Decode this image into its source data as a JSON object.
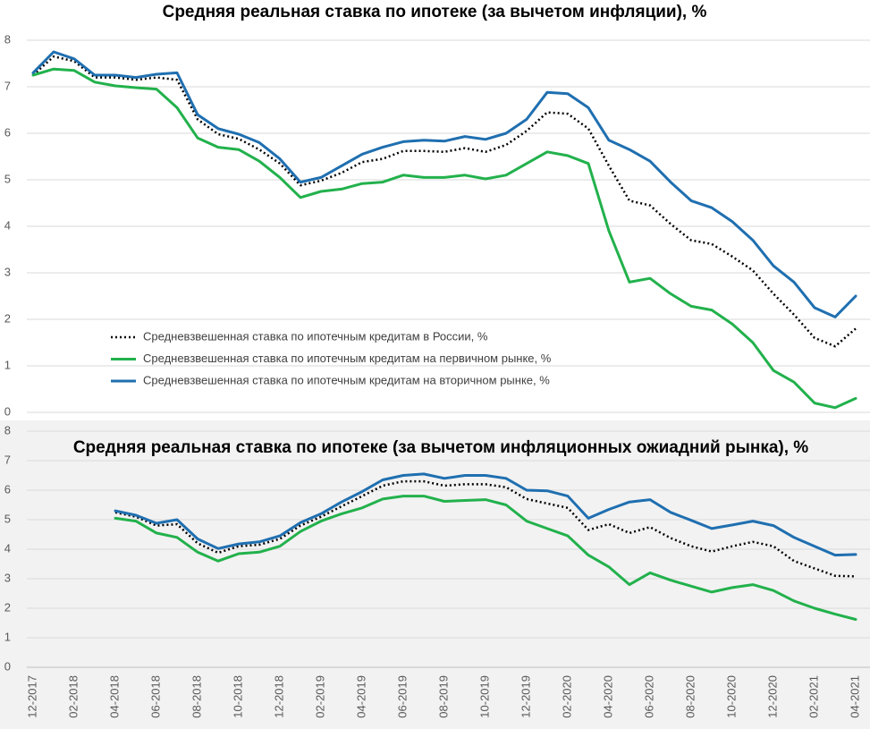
{
  "chart_data": [
    {
      "type": "line",
      "title": "Средняя реальная ставка по ипотеке (за вычетом инфляции), %",
      "ylim": [
        0,
        8
      ],
      "yticks": [
        0,
        1,
        2,
        3,
        4,
        5,
        6,
        7,
        8
      ],
      "grid": true,
      "legend": "inside-bottom-left",
      "series": [
        {
          "name": "Средневзвешенная ставка по ипотечным кредитам в России, %",
          "color": "#000000",
          "line_style": "dotted",
          "values": [
            7.25,
            7.65,
            7.55,
            7.2,
            7.2,
            7.15,
            7.2,
            7.15,
            6.3,
            5.98,
            5.88,
            5.65,
            5.35,
            4.88,
            4.98,
            5.15,
            5.38,
            5.45,
            5.62,
            5.62,
            5.6,
            5.68,
            5.6,
            5.75,
            6.05,
            6.45,
            6.42,
            6.1,
            5.3,
            4.55,
            4.45,
            4.05,
            3.7,
            3.62,
            3.35,
            3.05,
            2.55,
            2.1,
            1.6,
            1.42,
            1.8
          ]
        },
        {
          "name": "Средневзвешенная ставка по ипотечным кредитам на первичном рынке, %",
          "color": "#22b14c",
          "line_style": "solid",
          "values": [
            7.25,
            7.38,
            7.35,
            7.1,
            7.02,
            6.98,
            6.95,
            6.55,
            5.9,
            5.7,
            5.65,
            5.4,
            5.05,
            4.62,
            4.75,
            4.8,
            4.92,
            4.95,
            5.1,
            5.05,
            5.05,
            5.1,
            5.02,
            5.1,
            5.35,
            5.6,
            5.52,
            5.35,
            3.9,
            2.8,
            2.88,
            2.55,
            2.28,
            2.2,
            1.9,
            1.5,
            0.9,
            0.65,
            0.2,
            0.1,
            0.3
          ]
        },
        {
          "name": "Средневзвешенная ставка по ипотечным кредитам на вторичном рынке, %",
          "color": "#1f6fb0",
          "line_style": "solid",
          "values": [
            7.3,
            7.75,
            7.6,
            7.25,
            7.25,
            7.2,
            7.27,
            7.3,
            6.4,
            6.1,
            5.98,
            5.8,
            5.45,
            4.95,
            5.05,
            5.3,
            5.55,
            5.7,
            5.82,
            5.85,
            5.83,
            5.93,
            5.87,
            6.0,
            6.3,
            6.88,
            6.85,
            6.55,
            5.85,
            5.65,
            5.4,
            4.95,
            4.55,
            4.4,
            4.1,
            3.7,
            3.15,
            2.8,
            2.25,
            2.05,
            2.5
          ]
        }
      ]
    },
    {
      "type": "line",
      "title": "Средняя реальная ставка по ипотеке (за вычетом инфляционных ожиадний рынка), %",
      "categories": [
        "12-2017",
        null,
        "02-2018",
        null,
        "04-2018",
        null,
        "06-2018",
        null,
        "08-2018",
        null,
        "10-2018",
        null,
        "12-2018",
        null,
        "02-2019",
        null,
        "04-2019",
        null,
        "06-2019",
        null,
        "08-2019",
        null,
        "10-2019",
        null,
        "12-2019",
        null,
        "02-2020",
        null,
        "04-2020",
        null,
        "06-2020",
        null,
        "08-2020",
        null,
        "10-2020",
        null,
        "12-2020",
        null,
        "02-2021",
        null,
        "04-2021"
      ],
      "ylim": [
        0,
        8
      ],
      "yticks": [
        0,
        1,
        2,
        3,
        4,
        5,
        6,
        7,
        8
      ],
      "grid": true,
      "series": [
        {
          "color": "#000000",
          "line_style": "dotted",
          "values": [
            null,
            null,
            null,
            null,
            5.25,
            5.1,
            4.8,
            4.85,
            4.2,
            3.88,
            4.1,
            4.15,
            4.35,
            4.8,
            5.1,
            5.45,
            5.8,
            6.15,
            6.3,
            6.3,
            6.15,
            6.2,
            6.2,
            6.1,
            5.7,
            5.55,
            5.4,
            4.65,
            4.85,
            4.55,
            4.75,
            4.38,
            4.1,
            3.92,
            4.1,
            4.25,
            4.1,
            3.6,
            3.35,
            3.1,
            3.08
          ]
        },
        {
          "color": "#22b14c",
          "line_style": "solid",
          "values": [
            null,
            null,
            null,
            null,
            5.05,
            4.95,
            4.55,
            4.4,
            3.9,
            3.6,
            3.85,
            3.9,
            4.1,
            4.6,
            4.95,
            5.2,
            5.4,
            5.7,
            5.8,
            5.8,
            5.62,
            5.65,
            5.68,
            5.5,
            4.95,
            4.7,
            4.45,
            3.8,
            3.4,
            2.8,
            3.2,
            2.95,
            2.75,
            2.55,
            2.7,
            2.8,
            2.6,
            2.25,
            2.0,
            1.8,
            1.62
          ]
        },
        {
          "color": "#1f6fb0",
          "line_style": "solid",
          "values": [
            null,
            null,
            null,
            null,
            5.3,
            5.15,
            4.88,
            5.0,
            4.35,
            4.02,
            4.18,
            4.25,
            4.45,
            4.9,
            5.2,
            5.6,
            5.95,
            6.35,
            6.5,
            6.55,
            6.4,
            6.5,
            6.5,
            6.4,
            6.0,
            5.98,
            5.8,
            5.05,
            5.35,
            5.6,
            5.68,
            5.25,
            4.98,
            4.7,
            4.82,
            4.95,
            4.8,
            4.4,
            4.1,
            3.8,
            3.82
          ]
        }
      ]
    }
  ]
}
